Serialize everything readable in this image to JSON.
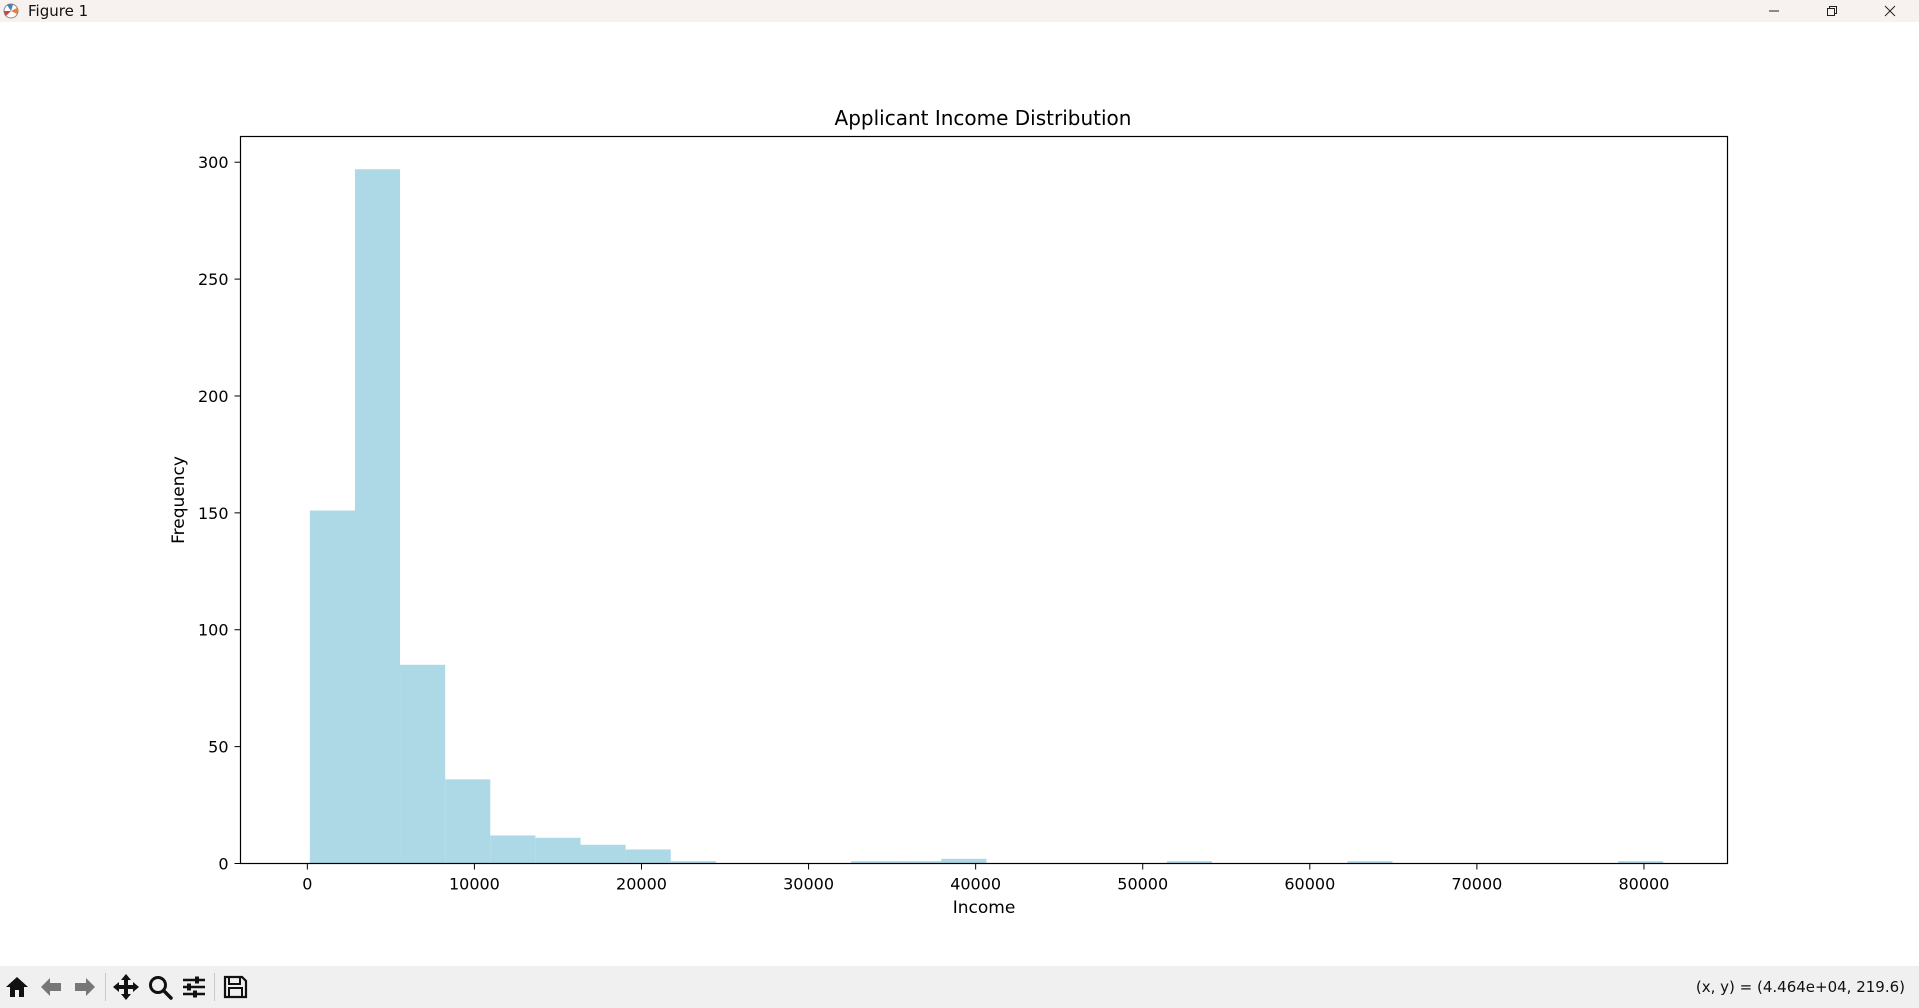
{
  "window": {
    "title": "Figure 1"
  },
  "toolbar": {
    "buttons": [
      {
        "name": "home-icon"
      },
      {
        "name": "back-arrow-icon"
      },
      {
        "name": "forward-arrow-icon"
      },
      {
        "name": "pan-icon"
      },
      {
        "name": "zoom-icon"
      },
      {
        "name": "configure-subplots-icon"
      },
      {
        "name": "save-icon"
      }
    ]
  },
  "status": {
    "coords": "(x, y) = (4.464e+04, 219.6)"
  },
  "colors": {
    "bar": "#add8e6",
    "background": "#ffffff",
    "toolbar": "#f0f0f0"
  },
  "chart_data": {
    "type": "bar",
    "title": "Applicant Income Distribution",
    "xlabel": "Income",
    "ylabel": "Frequency",
    "xlim": [
      -4000,
      85000
    ],
    "ylim": [
      0,
      311
    ],
    "xticks": [
      0,
      10000,
      20000,
      30000,
      40000,
      50000,
      60000,
      70000,
      80000
    ],
    "yticks": [
      0,
      50,
      100,
      150,
      200,
      250,
      300
    ],
    "bin_width": 2700,
    "bins": [
      {
        "x0": 150,
        "value": 151
      },
      {
        "x0": 2850,
        "value": 297
      },
      {
        "x0": 5550,
        "value": 85
      },
      {
        "x0": 8250,
        "value": 36
      },
      {
        "x0": 10950,
        "value": 12
      },
      {
        "x0": 13650,
        "value": 11
      },
      {
        "x0": 16350,
        "value": 8
      },
      {
        "x0": 19050,
        "value": 6
      },
      {
        "x0": 21750,
        "value": 1
      },
      {
        "x0": 32550,
        "value": 1
      },
      {
        "x0": 35250,
        "value": 1
      },
      {
        "x0": 37950,
        "value": 2
      },
      {
        "x0": 51450,
        "value": 1
      },
      {
        "x0": 62250,
        "value": 1
      },
      {
        "x0": 78450,
        "value": 1
      }
    ],
    "grid": false,
    "legend": "none"
  }
}
